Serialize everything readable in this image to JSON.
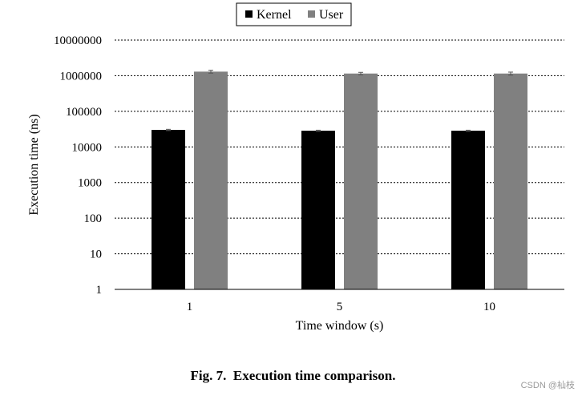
{
  "chart_data": {
    "type": "bar",
    "scale": "log",
    "categories": [
      "1",
      "5",
      "10"
    ],
    "series": [
      {
        "name": "Kernel",
        "color": "#000000",
        "values": [
          30000,
          28500,
          28500
        ],
        "errors": [
          1200,
          1000,
          1000
        ]
      },
      {
        "name": "User",
        "color": "#808080",
        "values": [
          1300000,
          1150000,
          1150000
        ],
        "errors": [
          120000,
          90000,
          110000
        ]
      }
    ],
    "xlabel": "Time window (s)",
    "ylabel": "Execution time (ns)",
    "yticks": [
      "1",
      "10",
      "100",
      "1000",
      "10000",
      "100000",
      "1000000",
      "10000000"
    ],
    "ylim": [
      1,
      10000000
    ],
    "grid": "horizontal dashed",
    "legend_position": "top-center"
  },
  "caption": {
    "label": "Fig. 7.",
    "text": "Execution time comparison."
  },
  "watermark": "CSDN @杣枝"
}
